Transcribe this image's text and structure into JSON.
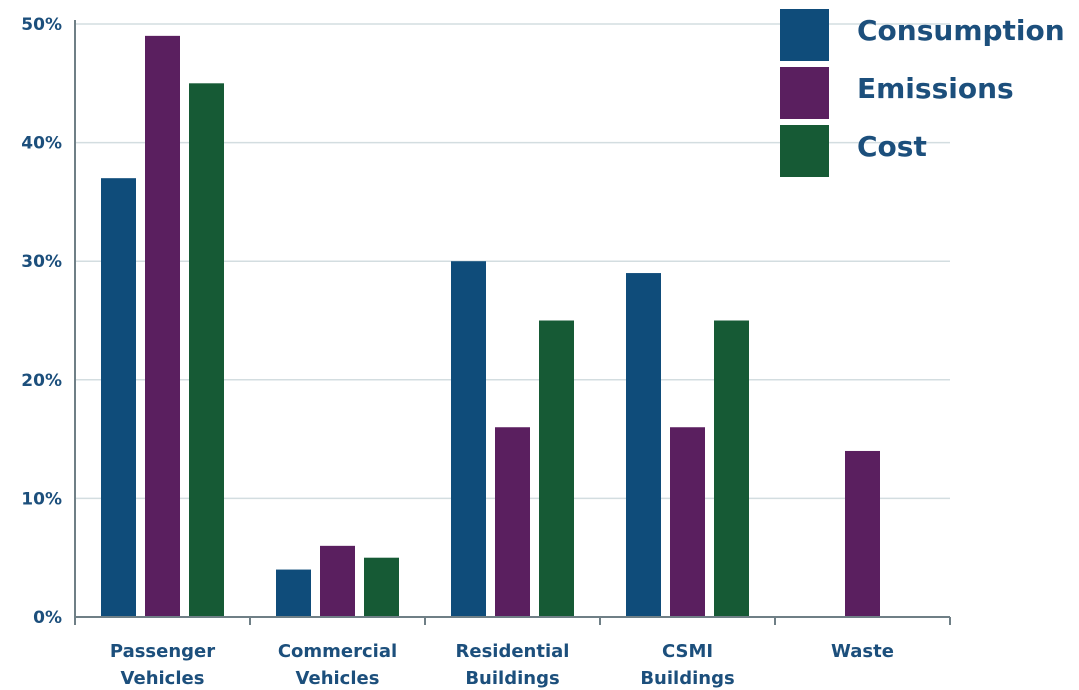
{
  "chart_data": {
    "type": "bar",
    "title": "",
    "xlabel": "",
    "ylabel": "",
    "ylim": [
      0,
      50
    ],
    "yticks": [
      0,
      10,
      20,
      30,
      40,
      50
    ],
    "ytick_labels": [
      "0%",
      "10%",
      "20%",
      "30%",
      "40%",
      "50%"
    ],
    "grid": true,
    "legend_position": "top-right",
    "categories": [
      [
        "Passenger",
        "Vehicles"
      ],
      [
        "Commercial",
        "Vehicles"
      ],
      [
        "Residential",
        "Buildings"
      ],
      [
        "CSMI",
        "Buildings"
      ],
      [
        "Waste"
      ]
    ],
    "series": [
      {
        "name": "Consumption",
        "color": "#0f4c7a",
        "values": [
          37,
          4,
          30,
          29,
          null
        ]
      },
      {
        "name": "Emissions",
        "color": "#5a1f5f",
        "values": [
          49,
          6,
          16,
          16,
          14
        ]
      },
      {
        "name": "Cost",
        "color": "#165a35",
        "values": [
          45,
          5,
          25,
          25,
          null
        ]
      }
    ]
  }
}
